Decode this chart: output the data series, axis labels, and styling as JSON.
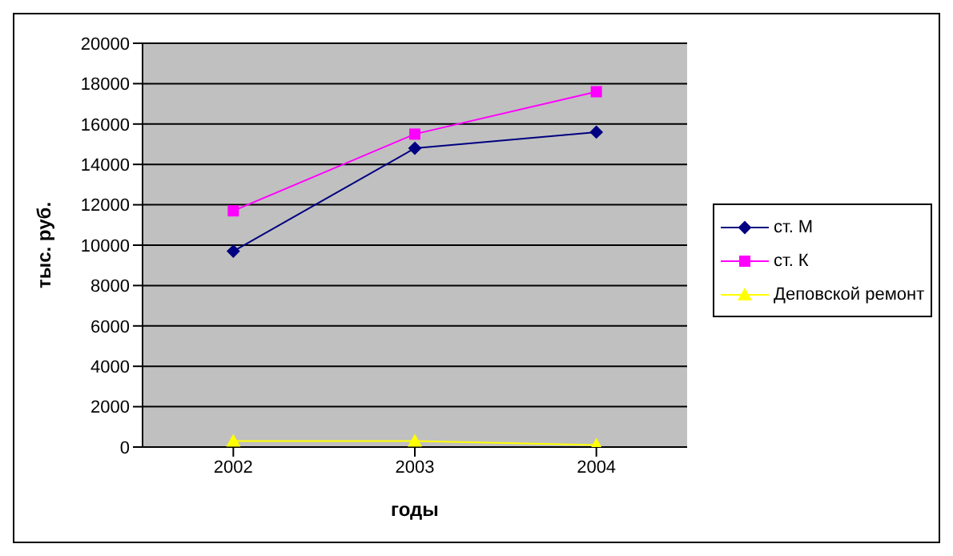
{
  "chart_data": {
    "type": "line",
    "xlabel": "годы",
    "ylabel": "тыс. руб.",
    "categories": [
      "2002",
      "2003",
      "2004"
    ],
    "series": [
      {
        "name": "ст. М",
        "color": "#000080",
        "marker": "diamond",
        "values": [
          9700,
          14800,
          15600
        ]
      },
      {
        "name": "ст. К",
        "color": "#ff00ff",
        "marker": "square",
        "values": [
          11700,
          15500,
          17600
        ]
      },
      {
        "name": "Деповской ремонт",
        "color": "#ffff00",
        "marker": "triangle",
        "values": [
          300,
          300,
          100
        ]
      }
    ],
    "ylim": [
      0,
      20000
    ],
    "yticks": [
      0,
      2000,
      4000,
      6000,
      8000,
      10000,
      12000,
      14000,
      16000,
      18000,
      20000
    ],
    "grid": "y",
    "legend": "right"
  }
}
